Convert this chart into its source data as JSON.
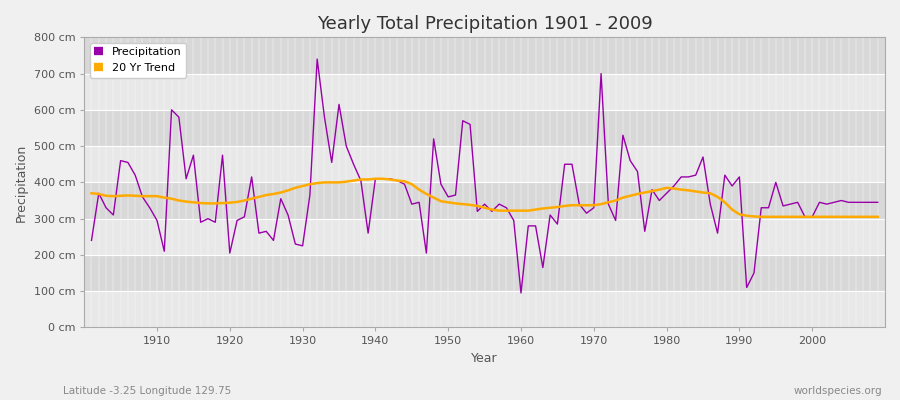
{
  "title": "Yearly Total Precipitation 1901 - 2009",
  "xlabel": "Year",
  "ylabel": "Precipitation",
  "subtitle_left": "Latitude -3.25 Longitude 129.75",
  "subtitle_right": "worldspecies.org",
  "bg_color": "#f0f0f0",
  "plot_bg_color": "#e0e0e0",
  "band_color_light": "#e8e8e8",
  "band_color_dark": "#d8d8d8",
  "precip_color": "#9900aa",
  "trend_color": "#ffaa00",
  "legend_labels": [
    "Precipitation",
    "20 Yr Trend"
  ],
  "ylim": [
    0,
    800
  ],
  "yticks": [
    0,
    100,
    200,
    300,
    400,
    500,
    600,
    700,
    800
  ],
  "ytick_labels": [
    "0 cm",
    "100 cm",
    "200 cm",
    "300 cm",
    "400 cm",
    "500 cm",
    "600 cm",
    "700 cm",
    "800 cm"
  ],
  "years": [
    1901,
    1902,
    1903,
    1904,
    1905,
    1906,
    1907,
    1908,
    1909,
    1910,
    1911,
    1912,
    1913,
    1914,
    1915,
    1916,
    1917,
    1918,
    1919,
    1920,
    1921,
    1922,
    1923,
    1924,
    1925,
    1926,
    1927,
    1928,
    1929,
    1930,
    1931,
    1932,
    1933,
    1934,
    1935,
    1936,
    1937,
    1938,
    1939,
    1940,
    1941,
    1942,
    1943,
    1944,
    1945,
    1946,
    1947,
    1948,
    1949,
    1950,
    1951,
    1952,
    1953,
    1954,
    1955,
    1956,
    1957,
    1958,
    1959,
    1960,
    1961,
    1962,
    1963,
    1964,
    1965,
    1966,
    1967,
    1968,
    1969,
    1970,
    1971,
    1972,
    1973,
    1974,
    1975,
    1976,
    1977,
    1978,
    1979,
    1980,
    1981,
    1982,
    1983,
    1984,
    1985,
    1986,
    1987,
    1988,
    1989,
    1990,
    1991,
    1992,
    1993,
    1994,
    1995,
    1996,
    1997,
    1998,
    1999,
    2000,
    2001,
    2002,
    2003,
    2004,
    2005,
    2006,
    2007,
    2008,
    2009
  ],
  "precip": [
    240,
    370,
    330,
    310,
    460,
    455,
    420,
    360,
    330,
    295,
    210,
    600,
    580,
    410,
    475,
    290,
    300,
    290,
    475,
    205,
    295,
    305,
    415,
    260,
    265,
    240,
    355,
    310,
    230,
    225,
    365,
    740,
    580,
    455,
    615,
    500,
    450,
    405,
    260,
    410,
    410,
    410,
    405,
    395,
    340,
    345,
    205,
    520,
    395,
    360,
    365,
    570,
    560,
    320,
    340,
    320,
    340,
    330,
    295,
    95,
    280,
    280,
    165,
    310,
    285,
    450,
    450,
    340,
    315,
    330,
    700,
    340,
    295,
    530,
    460,
    430,
    265,
    380,
    350,
    370,
    390,
    415,
    415,
    420,
    470,
    340,
    260,
    420,
    390,
    415,
    110,
    150,
    330,
    330,
    400,
    335,
    340,
    345,
    305,
    305,
    345,
    340,
    345,
    350,
    345,
    345,
    345,
    345,
    345
  ],
  "trend": [
    370,
    368,
    363,
    362,
    363,
    364,
    363,
    362,
    362,
    362,
    358,
    355,
    350,
    347,
    345,
    343,
    342,
    342,
    343,
    344,
    346,
    350,
    355,
    360,
    365,
    368,
    372,
    378,
    385,
    390,
    395,
    398,
    400,
    400,
    400,
    402,
    405,
    408,
    408,
    410,
    410,
    408,
    405,
    403,
    395,
    380,
    368,
    358,
    348,
    345,
    342,
    340,
    338,
    335,
    330,
    325,
    322,
    322,
    322,
    322,
    322,
    325,
    328,
    330,
    332,
    335,
    337,
    337,
    337,
    337,
    340,
    345,
    350,
    358,
    363,
    368,
    372,
    376,
    380,
    385,
    383,
    380,
    378,
    375,
    372,
    370,
    360,
    345,
    325,
    312,
    308,
    306,
    305,
    305,
    305,
    305,
    305,
    305,
    305,
    305,
    305,
    305,
    305,
    305,
    305,
    305,
    305,
    305,
    305
  ]
}
